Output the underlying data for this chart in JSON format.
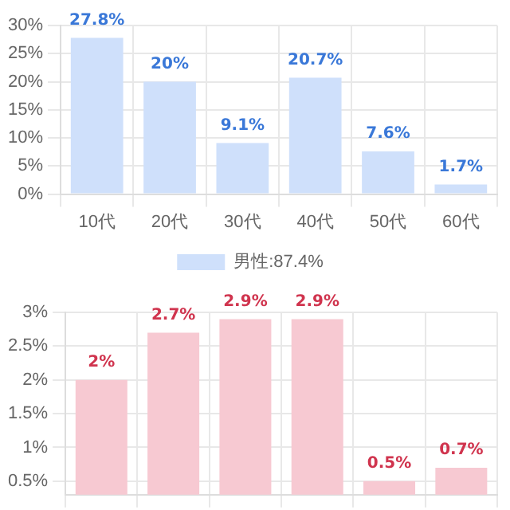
{
  "chart_data": [
    {
      "type": "bar",
      "categories": [
        "10代",
        "20代",
        "30代",
        "40代",
        "50代",
        "60代"
      ],
      "series": [
        {
          "name": "男性:87.4%",
          "color": "#cfe0fb",
          "values": [
            27.8,
            20,
            9.1,
            20.7,
            7.6,
            1.7
          ],
          "value_labels": [
            "27.8%",
            "20%",
            "9.1%",
            "20.7%",
            "7.6%",
            "1.7%"
          ]
        }
      ],
      "ylim": [
        0,
        30
      ],
      "yticks": [
        {
          "value": 0,
          "label": "0%"
        },
        {
          "value": 5,
          "label": "5%"
        },
        {
          "value": 10,
          "label": "10%"
        },
        {
          "value": 15,
          "label": "15%"
        },
        {
          "value": 20,
          "label": "20%"
        },
        {
          "value": 25,
          "label": "25%"
        },
        {
          "value": 30,
          "label": "30%"
        }
      ],
      "grid": true,
      "legend": "bottom"
    },
    {
      "type": "bar",
      "categories": [
        null,
        null,
        null,
        null,
        null,
        null
      ],
      "series": [
        {
          "color": "#f7c9d2",
          "values": [
            2,
            2.7,
            2.9,
            2.9,
            0.5,
            0.7
          ],
          "value_labels": [
            "2%",
            "2.7%",
            "2.9%",
            "2.9%",
            "0.5%",
            "0.7%"
          ]
        }
      ],
      "ylim": [
        0.3,
        3
      ],
      "yticks": [
        {
          "value": 0.5,
          "label": "0.5%"
        },
        {
          "value": 1,
          "label": "1%"
        },
        {
          "value": 1.5,
          "label": "1.5%"
        },
        {
          "value": 2,
          "label": "2%"
        },
        {
          "value": 2.5,
          "label": "2.5%"
        },
        {
          "value": 3,
          "label": "3%"
        }
      ],
      "grid": true,
      "tick_labels": "y",
      "legend": false
    }
  ]
}
